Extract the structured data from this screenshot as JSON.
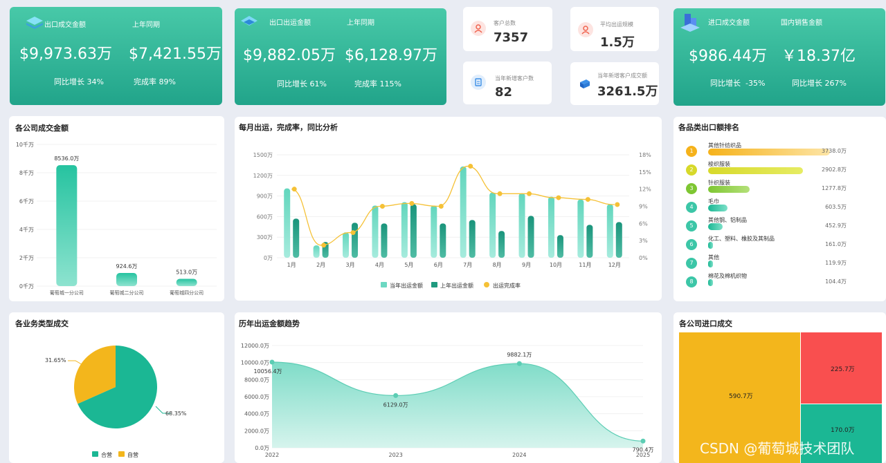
{
  "kpi_export_deal": {
    "title": "出口成交金额",
    "compare_label": "上年同期",
    "value": "$9,973.63万",
    "compare_value": "$7,421.55万",
    "yoy": "同比增长 34%",
    "completion": "完成率 89%"
  },
  "kpi_export_ship": {
    "title": "出口出运金额",
    "compare_label": "上年同期",
    "value": "$9,882.05万",
    "compare_value": "$6,128.97万",
    "yoy": "同比增长 61%",
    "completion": "完成率 115%"
  },
  "kpi_small": [
    {
      "label": "客户总数",
      "value": "7357",
      "icon": "user-icon"
    },
    {
      "label": "平均出运规模",
      "value": "1.5万",
      "icon": "user-icon"
    },
    {
      "label": "当年新增客户数",
      "value": "82",
      "icon": "clipboard-icon"
    },
    {
      "label": "当年新增客户成交额",
      "value": "3261.5万",
      "icon": "cube-icon"
    }
  ],
  "kpi_import": {
    "title": "进口成交金额",
    "domestic_label": "国内销售金额",
    "value": "$986.44万",
    "domestic_value": "￥18.37亿",
    "yoy": "同比增长  -35%",
    "domestic_yoy": "同比增长 267%"
  },
  "company_deals": {
    "title": "各公司成交金额",
    "y_ticks": [
      "10千万",
      "8千万",
      "6千万",
      "4千万",
      "2千万",
      "0千万"
    ],
    "bars": [
      {
        "label": "葡萄城一分公司",
        "value_label": "8536.0万",
        "value": 8536.0
      },
      {
        "label": "葡萄城二分公司",
        "value_label": "924.6万",
        "value": 924.6
      },
      {
        "label": "葡萄城四分公司",
        "value_label": "513.0万",
        "value": 513.0
      }
    ]
  },
  "monthly": {
    "title": "每月出运，完成率，同比分析",
    "y_ticks": [
      "1500万",
      "1200万",
      "900万",
      "600万",
      "300万",
      "0万"
    ],
    "y2_ticks": [
      "18%",
      "15%",
      "12%",
      "9%",
      "6%",
      "3%",
      "0%"
    ],
    "months": [
      "1月",
      "2月",
      "3月",
      "4月",
      "5月",
      "6月",
      "7月",
      "8月",
      "9月",
      "10月",
      "11月",
      "12月"
    ],
    "legend": [
      "当年出运金额",
      "上年出运金额",
      "出运完成率"
    ]
  },
  "chart_data": [
    {
      "type": "bar",
      "title": "各公司成交金额",
      "categories": [
        "葡萄城一分公司",
        "葡萄城二分公司",
        "葡萄城四分公司"
      ],
      "values": [
        8536.0,
        924.6,
        513.0
      ],
      "ylim": [
        0,
        10000
      ]
    },
    {
      "type": "bar",
      "title": "每月出运，完成率，同比分析",
      "categories": [
        "1月",
        "2月",
        "3月",
        "4月",
        "5月",
        "6月",
        "7月",
        "8月",
        "9月",
        "10月",
        "11月",
        "12月"
      ],
      "ylim": [
        0,
        1500
      ],
      "y2lim": [
        0,
        18
      ],
      "series": [
        {
          "name": "当年出运金额",
          "values": [
            1010,
            180,
            370,
            760,
            810,
            760,
            1330,
            950,
            940,
            890,
            850,
            780
          ]
        },
        {
          "name": "上年出运金额",
          "values": [
            570,
            230,
            510,
            500,
            780,
            500,
            550,
            390,
            610,
            330,
            480,
            520
          ]
        },
        {
          "name": "出运完成率",
          "values": [
            12,
            2.2,
            4.4,
            9.0,
            9.5,
            9.0,
            16.0,
            11.2,
            11.2,
            10.5,
            10.2,
            9.3
          ]
        }
      ]
    },
    {
      "type": "pie",
      "title": "各业务类型成交",
      "categories": [
        "合营",
        "自营"
      ],
      "values": [
        68.35,
        31.65
      ]
    },
    {
      "type": "area",
      "title": "历年出运金额趋势",
      "x": [
        "2022",
        "2023",
        "2024",
        "2025"
      ],
      "values": [
        10056.4,
        6129.0,
        9882.1,
        790.4
      ],
      "ylim": [
        0,
        12000
      ]
    }
  ],
  "category_rank": {
    "title": "各品类出口额排名",
    "items": [
      {
        "rank": "1",
        "name": "其他针纺织品",
        "value": "3738.0万",
        "frac": 1.0,
        "color": "#f5b21b"
      },
      {
        "rank": "2",
        "name": "梭织服装",
        "value": "2902.8万",
        "frac": 0.78,
        "color": "#d7d92a"
      },
      {
        "rank": "3",
        "name": "针织服装",
        "value": "1277.8万",
        "frac": 0.34,
        "color": "#7ec632"
      },
      {
        "rank": "4",
        "name": "毛巾",
        "value": "603.5万",
        "frac": 0.16,
        "color": "#3cc6a7"
      },
      {
        "rank": "5",
        "name": "其他钢、铝制品",
        "value": "452.9万",
        "frac": 0.12,
        "color": "#3cc6a7"
      },
      {
        "rank": "6",
        "name": "化工、塑料、橡胶及其制品",
        "value": "161.0万",
        "frac": 0.04,
        "color": "#3cc6a7"
      },
      {
        "rank": "7",
        "name": "其他",
        "value": "119.9万",
        "frac": 0.03,
        "color": "#3cc6a7"
      },
      {
        "rank": "8",
        "name": "棉花及棉机织物",
        "value": "104.4万",
        "frac": 0.03,
        "color": "#3cc6a7"
      }
    ]
  },
  "business_type": {
    "title": "各业务类型成交",
    "slices": [
      {
        "label": "68.35%",
        "name": "合营",
        "color": "#1bb794"
      },
      {
        "label": "31.65%",
        "name": "自营",
        "color": "#f3b61c"
      }
    ]
  },
  "yearly_trend": {
    "title": "历年出运金额趋势",
    "y_ticks": [
      "12000.0万",
      "10000.0万",
      "8000.0万",
      "6000.0万",
      "4000.0万",
      "2000.0万",
      "0.0万"
    ],
    "years": [
      "2022",
      "2023",
      "2024",
      "2025"
    ],
    "point_labels": [
      "10056.4万",
      "6129.0万",
      "9882.1万",
      "790.4万"
    ]
  },
  "company_import": {
    "title": "各公司进口成交",
    "cells": [
      {
        "label": "590.7万",
        "color": "#f3b61c"
      },
      {
        "label": "225.7万",
        "color": "#f94f4f"
      },
      {
        "label": "170.0万",
        "color": "#1bb794"
      }
    ]
  },
  "watermark": "CSDN @葡萄城技术团队",
  "colors": {
    "accent": "#2db89b",
    "cur_bar": "#6cd8c2",
    "prev_bar": "#1f9a7f",
    "line": "#f5c136"
  }
}
